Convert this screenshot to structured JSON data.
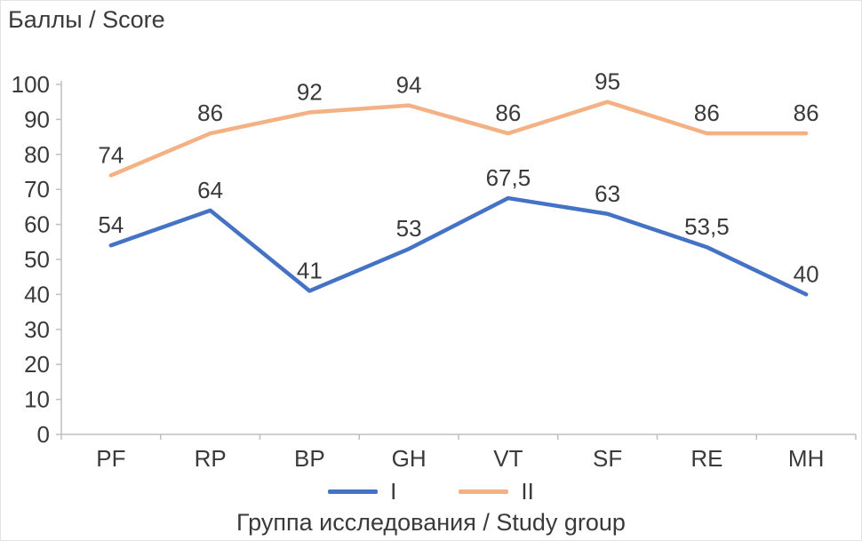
{
  "title": "Баллы / Score",
  "xlabel": "Группа исследования / Study group",
  "colors": {
    "series1": "#4472c4",
    "series2": "#f4b183",
    "axis": "#bfbfbf",
    "text": "#3a3a3a"
  },
  "chart_data": {
    "type": "line",
    "title": "Баллы / Score",
    "xlabel": "Группа исследования / Study group",
    "ylabel": "",
    "categories": [
      "PF",
      "RP",
      "BP",
      "GH",
      "VT",
      "SF",
      "RE",
      "MH"
    ],
    "series": [
      {
        "name": "I",
        "color": "#4472c4",
        "values": [
          54,
          64,
          41,
          53,
          67.5,
          63,
          53.5,
          40
        ],
        "labels": [
          "54",
          "64",
          "41",
          "53",
          "67,5",
          "63",
          "53,5",
          "40"
        ]
      },
      {
        "name": "II",
        "color": "#f4b183",
        "values": [
          74,
          86,
          92,
          94,
          86,
          95,
          86,
          86
        ],
        "labels": [
          "74",
          "86",
          "92",
          "94",
          "86",
          "95",
          "86",
          "86"
        ]
      }
    ],
    "ylim": [
      0,
      100
    ],
    "ytick_step": 10,
    "grid": false,
    "legend_position": "bottom"
  }
}
